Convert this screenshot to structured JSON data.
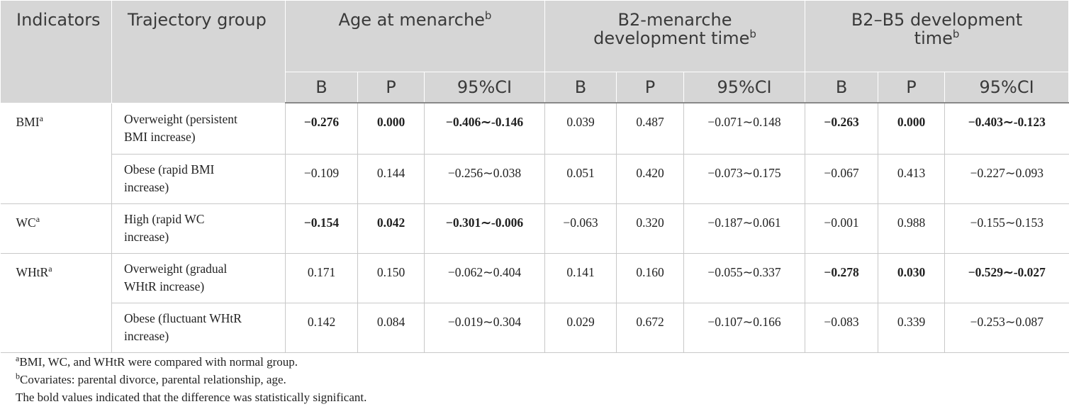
{
  "header": {
    "indicators": "Indicators",
    "trajectory_group": "Trajectory group",
    "age_at_menarche": "Age at menarche",
    "b2_menarche_line1": "B2-menarche",
    "b2_menarche_line2": "development time",
    "b2_b5_line1": "B2–B5 development",
    "b2_b5_line2": "time",
    "sup_b": "b",
    "sub": [
      "B",
      "P",
      "95%CI",
      "B",
      "P",
      "95%CI",
      "B",
      "P",
      "95%CI"
    ]
  },
  "rows": [
    {
      "indicator": "BMI",
      "indicator_sup": "a",
      "group": [
        "Overweight (persistent",
        "BMI increase)"
      ],
      "cells": [
        "−0.276",
        "0.000",
        "−0.406∼-0.146",
        "0.039",
        "0.487",
        "−0.071∼0.148",
        "−0.263",
        "0.000",
        "−0.403∼-0.123"
      ],
      "bold": [
        true,
        true,
        true,
        false,
        false,
        false,
        true,
        true,
        true
      ]
    },
    {
      "indicator": "",
      "group": [
        "Obese (rapid BMI",
        "increase)"
      ],
      "cells": [
        "−0.109",
        "0.144",
        "−0.256∼0.038",
        "0.051",
        "0.420",
        "−0.073∼0.175",
        "−0.067",
        "0.413",
        "−0.227∼0.093"
      ],
      "bold": [
        false,
        false,
        false,
        false,
        false,
        false,
        false,
        false,
        false
      ]
    },
    {
      "indicator": "WC",
      "indicator_sup": "a",
      "group": [
        "High (rapid WC",
        "increase)"
      ],
      "cells": [
        "−0.154",
        "0.042",
        "−0.301∼-0.006",
        "−0.063",
        "0.320",
        "−0.187∼0.061",
        "−0.001",
        "0.988",
        "−0.155∼0.153"
      ],
      "bold": [
        true,
        true,
        true,
        false,
        false,
        false,
        false,
        false,
        false
      ]
    },
    {
      "indicator": "WHtR",
      "indicator_sup": "a",
      "group": [
        "Overweight (gradual",
        "WHtR increase)"
      ],
      "cells": [
        "0.171",
        "0.150",
        "−0.062∼0.404",
        "0.141",
        "0.160",
        "−0.055∼0.337",
        "−0.278",
        "0.030",
        "−0.529∼-0.027"
      ],
      "bold": [
        false,
        false,
        false,
        false,
        false,
        false,
        true,
        true,
        true
      ]
    },
    {
      "indicator": "",
      "group": [
        "Obese (fluctuant WHtR",
        "increase)"
      ],
      "cells": [
        "0.142",
        "0.084",
        "−0.019∼0.304",
        "0.029",
        "0.672",
        "−0.107∼0.166",
        "−0.083",
        "0.339",
        "−0.253∼0.087"
      ],
      "bold": [
        false,
        false,
        false,
        false,
        false,
        false,
        false,
        false,
        false
      ]
    }
  ],
  "notes": {
    "note_a_sup": "a",
    "note_a": "BMI, WC, and WHtR were compared with normal group.",
    "note_b_sup": "b",
    "note_b": "Covariates: parental divorce, parental relationship, age.",
    "note_bold": "The bold values indicated that the difference was statistically significant."
  }
}
